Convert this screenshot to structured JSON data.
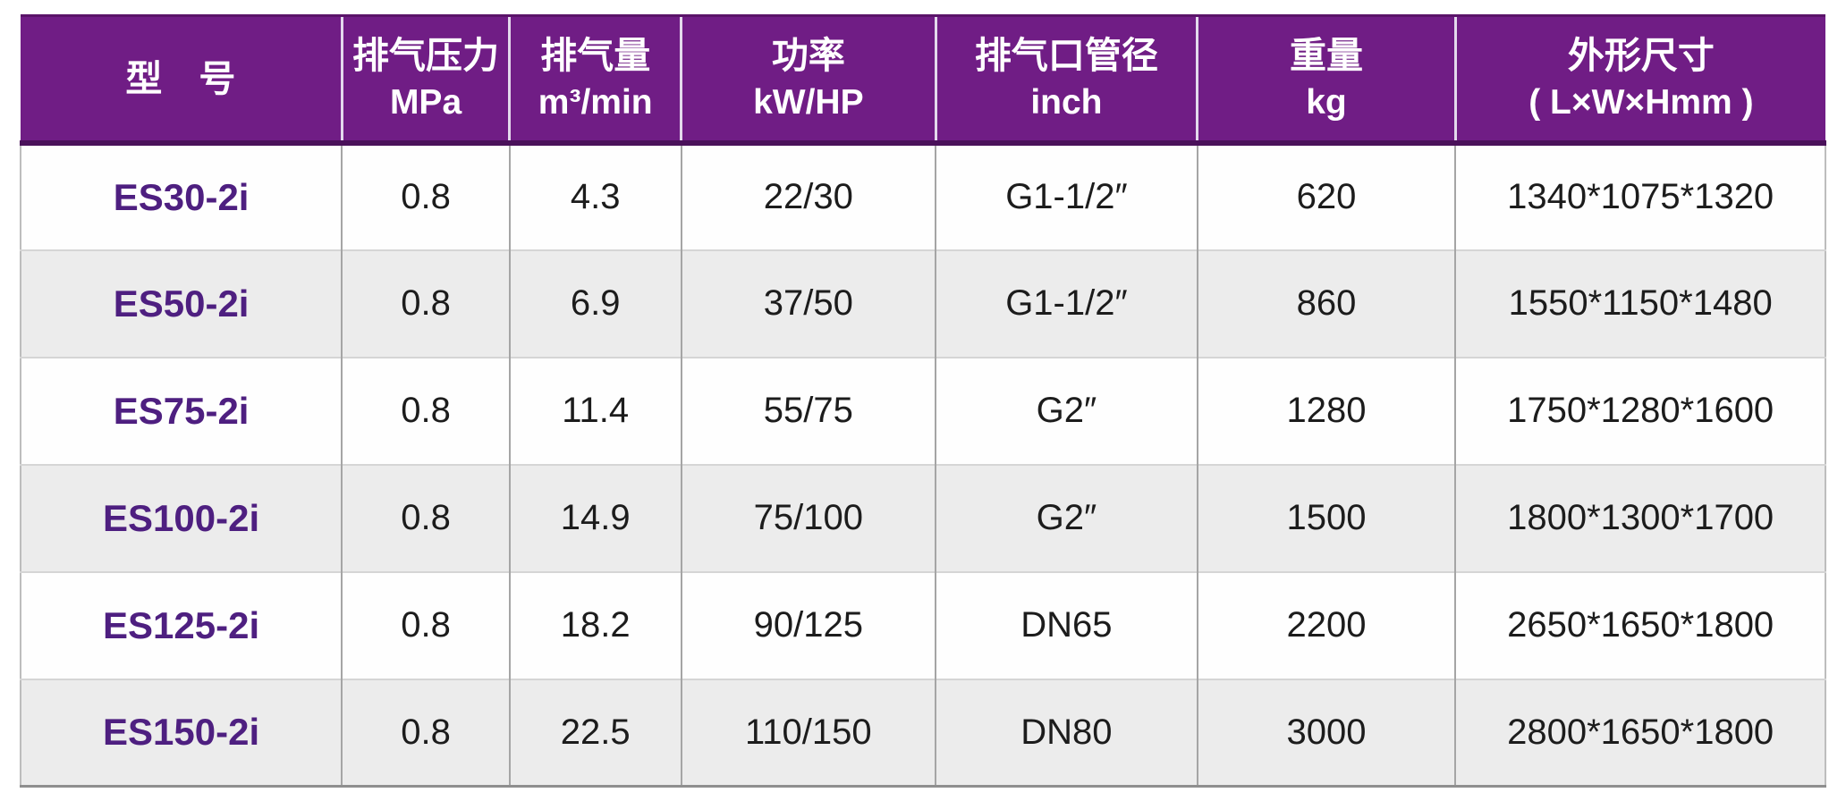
{
  "theme": {
    "header_bg": "#701d85",
    "header_text": "#ffffff",
    "header_border_dark": "#4a115a",
    "header_separator": "#e3d9ec",
    "model_text_color": "#4e1f80",
    "row_bg": "#fefefe",
    "row_alt_bg": "#ececec",
    "body_text": "#1c1c1c",
    "grid_line": "#a5a5a5"
  },
  "table": {
    "columns": [
      {
        "id": "model",
        "title": "型　号",
        "unit": ""
      },
      {
        "id": "discharge-pressure",
        "title": "排气压力",
        "unit": "MPa"
      },
      {
        "id": "air-delivery",
        "title": "排气量",
        "unit": "m³/min"
      },
      {
        "id": "power",
        "title": "功率",
        "unit": "kW/HP"
      },
      {
        "id": "outlet-pipe-size",
        "title": "排气口管径",
        "unit": "inch"
      },
      {
        "id": "weight",
        "title": "重量",
        "unit": "kg"
      },
      {
        "id": "dimensions",
        "title": "外形尺寸",
        "unit": "( L×W×Hmm )"
      }
    ],
    "rows": [
      {
        "model": "ES30-2i",
        "pressure": "0.8",
        "delivery": "4.3",
        "power": "22/30",
        "outlet": "G1-1/2″",
        "weight": "620",
        "dimensions": "1340*1075*1320"
      },
      {
        "model": "ES50-2i",
        "pressure": "0.8",
        "delivery": "6.9",
        "power": "37/50",
        "outlet": "G1-1/2″",
        "weight": "860",
        "dimensions": "1550*1150*1480"
      },
      {
        "model": "ES75-2i",
        "pressure": "0.8",
        "delivery": "11.4",
        "power": "55/75",
        "outlet": "G2″",
        "weight": "1280",
        "dimensions": "1750*1280*1600"
      },
      {
        "model": "ES100-2i",
        "pressure": "0.8",
        "delivery": "14.9",
        "power": "75/100",
        "outlet": "G2″",
        "weight": "1500",
        "dimensions": "1800*1300*1700"
      },
      {
        "model": "ES125-2i",
        "pressure": "0.8",
        "delivery": "18.2",
        "power": "90/125",
        "outlet": "DN65",
        "weight": "2200",
        "dimensions": "2650*1650*1800"
      },
      {
        "model": "ES150-2i",
        "pressure": "0.8",
        "delivery": "22.5",
        "power": "110/150",
        "outlet": "DN80",
        "weight": "3000",
        "dimensions": "2800*1650*1800"
      }
    ]
  }
}
